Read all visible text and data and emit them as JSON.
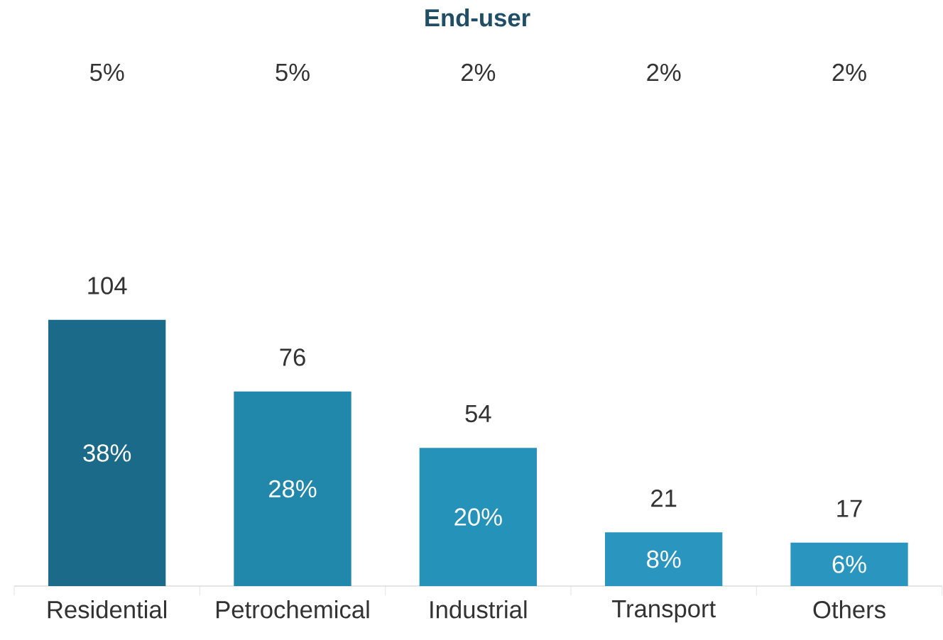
{
  "chart_data": {
    "type": "bar",
    "title": "End-user",
    "categories": [
      "Residential",
      "Petrochemical",
      "Industrial",
      "Transport",
      "Others"
    ],
    "values": [
      104,
      76,
      54,
      21,
      17
    ],
    "colors": [
      "#1b6a8a",
      "#2187ab",
      "#2592ba",
      "#2a96c0",
      "#2a96c0"
    ],
    "data_labels": true,
    "annotations": [
      "38%",
      "28%",
      "20%",
      "8%",
      "6%",
      "5%",
      "5%",
      "2%",
      "2%",
      "2%"
    ]
  }
}
